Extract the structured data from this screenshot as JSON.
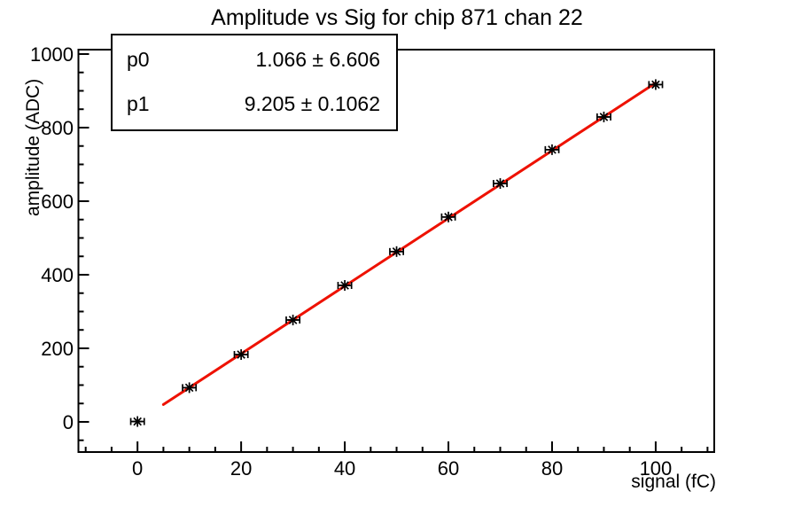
{
  "title": "Amplitude vs Sig for chip 871 chan 22",
  "stats": {
    "rows": [
      {
        "name": "p0",
        "value": "1.066 ± 6.606"
      },
      {
        "name": "p1",
        "value": "9.205 ± 0.1062"
      }
    ]
  },
  "chart_data": {
    "type": "scatter",
    "title": "Amplitude vs Sig for chip 871 chan 22",
    "xlabel": "signal (fC)",
    "ylabel": "amplitude (ADC)",
    "x": [
      0,
      10,
      20,
      30,
      40,
      50,
      60,
      70,
      80,
      90,
      100
    ],
    "y": [
      1,
      93,
      183,
      277,
      371,
      463,
      557,
      648,
      740,
      829,
      917
    ],
    "xerr": 1.3,
    "fit": {
      "name": "pol1",
      "p0": 1.066,
      "p1": 9.205,
      "range": [
        5,
        100
      ],
      "color": "#ee1100",
      "line_width": 3
    },
    "xlim": [
      -11.4,
      111.3
    ],
    "ylim": [
      -82,
      1012
    ],
    "x_major_ticks": [
      0,
      20,
      40,
      60,
      80,
      100
    ],
    "x_minor_step": 5,
    "x_major_every": 20,
    "y_major_ticks": [
      0,
      200,
      400,
      600,
      800,
      1000
    ],
    "y_minor_step": 50,
    "y_major_every": 200,
    "grid": false,
    "legend": "none",
    "marker": {
      "style": "asterisk-star",
      "color": "#000000"
    },
    "axis_color": "#000000",
    "background": "#ffffff"
  }
}
